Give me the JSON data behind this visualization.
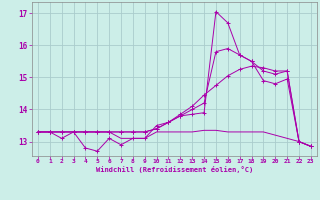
{
  "xlabel": "Windchill (Refroidissement éolien,°C)",
  "bg_color": "#cceee8",
  "grid_color": "#aacccc",
  "line_color": "#aa00aa",
  "x_ticks": [
    0,
    1,
    2,
    3,
    4,
    5,
    6,
    7,
    8,
    9,
    10,
    11,
    12,
    13,
    14,
    15,
    16,
    17,
    18,
    19,
    20,
    21,
    22,
    23
  ],
  "y_ticks": [
    13,
    14,
    15,
    16,
    17
  ],
  "xlim": [
    -0.5,
    23.5
  ],
  "ylim": [
    12.55,
    17.35
  ],
  "series": [
    [
      13.3,
      13.3,
      13.1,
      13.3,
      12.8,
      12.7,
      13.1,
      12.9,
      13.1,
      13.1,
      13.5,
      13.6,
      13.8,
      13.85,
      13.9,
      17.05,
      16.7,
      15.7,
      15.5,
      14.9,
      14.8,
      14.95,
      13.0,
      12.85
    ],
    [
      13.3,
      13.3,
      13.3,
      13.3,
      13.3,
      13.3,
      13.3,
      13.3,
      13.3,
      13.3,
      13.4,
      13.6,
      13.85,
      14.1,
      14.45,
      14.75,
      15.05,
      15.25,
      15.35,
      15.3,
      15.2,
      15.2,
      13.0,
      12.85
    ],
    [
      13.3,
      13.3,
      13.3,
      13.3,
      13.3,
      13.3,
      13.3,
      13.3,
      13.3,
      13.3,
      13.4,
      13.6,
      13.8,
      14.0,
      14.2,
      15.8,
      15.9,
      15.7,
      15.5,
      15.2,
      15.1,
      15.2,
      13.0,
      12.85
    ],
    [
      13.3,
      13.3,
      13.3,
      13.3,
      13.3,
      13.3,
      13.3,
      13.1,
      13.1,
      13.1,
      13.3,
      13.3,
      13.3,
      13.3,
      13.35,
      13.35,
      13.3,
      13.3,
      13.3,
      13.3,
      13.2,
      13.1,
      13.0,
      12.85
    ]
  ]
}
